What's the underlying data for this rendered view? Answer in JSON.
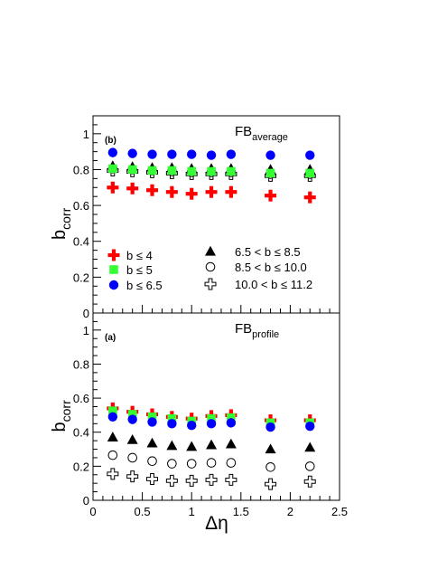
{
  "chart_data": [
    {
      "type": "scatter",
      "panel_tag": "(b)",
      "title": "FB",
      "title_sub": "average",
      "ylabel": "b",
      "ylabel_sub": "corr",
      "xlabel": "",
      "xlim": [
        0,
        2.5
      ],
      "ylim": [
        0,
        1.1
      ],
      "y_ticks": [
        "0",
        "0.2",
        "0.4",
        "0.6",
        "0.8",
        "1"
      ],
      "x_ticks": [],
      "legend": [
        {
          "name": "b ≤ 4",
          "marker": "cross",
          "color": "#ff0000"
        },
        {
          "name": "b ≤ 5",
          "marker": "square",
          "color": "#33ff33"
        },
        {
          "name": "b ≤ 6.5",
          "marker": "circle",
          "color": "#0000ff"
        },
        {
          "name": "6.5 < b ≤ 8.5",
          "marker": "triangle",
          "color": "#000000"
        },
        {
          "name": "8.5 < b ≤ 10.0",
          "marker": "open-circle",
          "color": "#000000"
        },
        {
          "name": "10.0 < b ≤ 11.2",
          "marker": "open-cross",
          "color": "#000000"
        }
      ],
      "series": [
        {
          "ref": 0,
          "x": [
            0.2,
            0.4,
            0.6,
            0.8,
            1.0,
            1.2,
            1.4,
            1.8,
            2.2
          ],
          "y": [
            0.7,
            0.695,
            0.685,
            0.675,
            0.665,
            0.675,
            0.675,
            0.655,
            0.645
          ]
        },
        {
          "ref": 1,
          "x": [
            0.2,
            0.4,
            0.6,
            0.8,
            1.0,
            1.2,
            1.4,
            1.8,
            2.2
          ],
          "y": [
            0.805,
            0.8,
            0.795,
            0.795,
            0.79,
            0.79,
            0.79,
            0.78,
            0.78
          ]
        },
        {
          "ref": 2,
          "x": [
            0.2,
            0.4,
            0.6,
            0.8,
            1.0,
            1.2,
            1.4,
            1.8,
            2.2
          ],
          "y": [
            0.895,
            0.89,
            0.885,
            0.885,
            0.885,
            0.88,
            0.885,
            0.88,
            0.88
          ]
        },
        {
          "ref": 3,
          "x": [
            0.2,
            0.4,
            0.6,
            0.8,
            1.0,
            1.2,
            1.4,
            1.8,
            2.2
          ],
          "y": [
            0.82,
            0.815,
            0.81,
            0.81,
            0.805,
            0.805,
            0.805,
            0.8,
            0.8
          ]
        },
        {
          "ref": 4,
          "x": [
            0.2,
            0.4,
            0.6,
            0.8,
            1.0,
            1.2,
            1.4,
            1.8,
            2.2
          ],
          "y": [
            0.805,
            0.8,
            0.795,
            0.79,
            0.785,
            0.785,
            0.785,
            0.775,
            0.775
          ]
        },
        {
          "ref": 5,
          "x": [
            0.2,
            0.4,
            0.6,
            0.8,
            1.0,
            1.2,
            1.4,
            1.8,
            2.2
          ],
          "y": [
            0.795,
            0.79,
            0.785,
            0.78,
            0.775,
            0.775,
            0.775,
            0.765,
            0.765
          ]
        }
      ]
    },
    {
      "type": "scatter",
      "panel_tag": "(a)",
      "title": "FB",
      "title_sub": "profile",
      "ylabel": "b",
      "ylabel_sub": "corr",
      "xlabel": "Δη",
      "xlim": [
        0,
        2.5
      ],
      "ylim": [
        0,
        1.1
      ],
      "y_ticks": [
        "0",
        "0.2",
        "0.4",
        "0.6",
        "0.8",
        "1"
      ],
      "x_ticks": [
        "0",
        "0.5",
        "1",
        "1.5",
        "2",
        "2.5"
      ],
      "series": [
        {
          "ref": 0,
          "x": [
            0.2,
            0.4,
            0.6,
            0.8,
            1.0,
            1.2,
            1.4,
            1.8,
            2.2
          ],
          "y": [
            0.54,
            0.52,
            0.505,
            0.49,
            0.48,
            0.495,
            0.5,
            0.47,
            0.47
          ]
        },
        {
          "ref": 1,
          "x": [
            0.2,
            0.4,
            0.6,
            0.8,
            1.0,
            1.2,
            1.4,
            1.8,
            2.2
          ],
          "y": [
            0.525,
            0.505,
            0.49,
            0.48,
            0.465,
            0.48,
            0.485,
            0.455,
            0.455
          ]
        },
        {
          "ref": 2,
          "x": [
            0.2,
            0.4,
            0.6,
            0.8,
            1.0,
            1.2,
            1.4,
            1.8,
            2.2
          ],
          "y": [
            0.49,
            0.475,
            0.46,
            0.45,
            0.44,
            0.45,
            0.455,
            0.43,
            0.435
          ]
        },
        {
          "ref": 3,
          "x": [
            0.2,
            0.4,
            0.6,
            0.8,
            1.0,
            1.2,
            1.4,
            1.8,
            2.2
          ],
          "y": [
            0.37,
            0.355,
            0.335,
            0.32,
            0.315,
            0.325,
            0.33,
            0.3,
            0.31
          ]
        },
        {
          "ref": 4,
          "x": [
            0.2,
            0.4,
            0.6,
            0.8,
            1.0,
            1.2,
            1.4,
            1.8,
            2.2
          ],
          "y": [
            0.265,
            0.25,
            0.23,
            0.215,
            0.215,
            0.22,
            0.22,
            0.195,
            0.2
          ]
        },
        {
          "ref": 5,
          "x": [
            0.2,
            0.4,
            0.6,
            0.8,
            1.0,
            1.2,
            1.4,
            1.8,
            2.2
          ],
          "y": [
            0.155,
            0.14,
            0.125,
            0.115,
            0.115,
            0.12,
            0.12,
            0.095,
            0.11
          ]
        }
      ]
    }
  ]
}
